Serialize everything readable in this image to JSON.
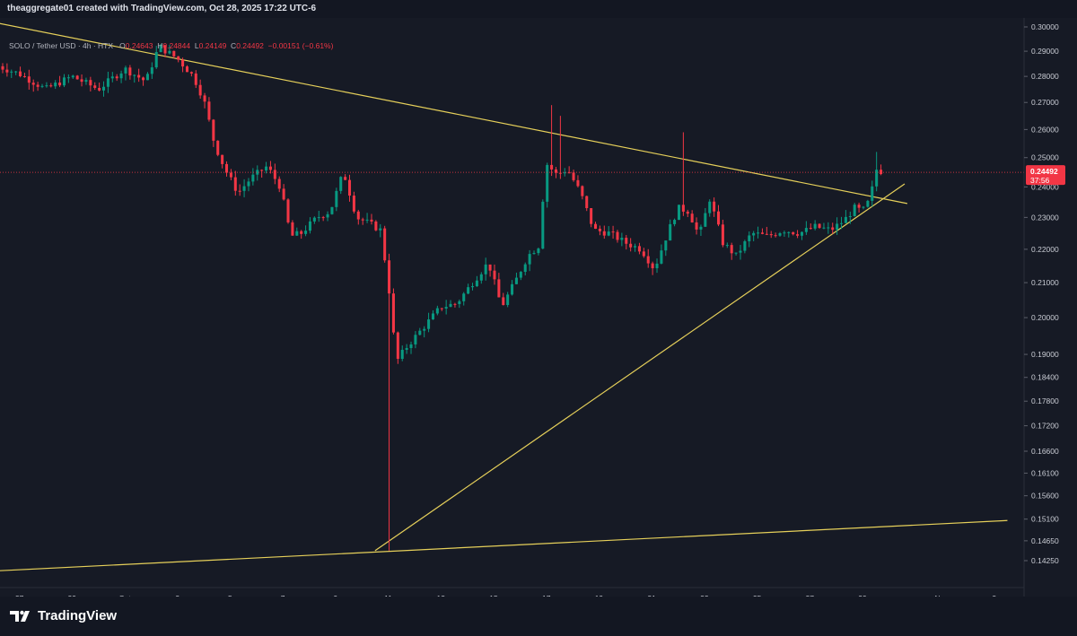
{
  "header": {
    "credit": "theaggregate01 created with TradingView.com, Oct 28, 2025 17:22 UTC-6"
  },
  "legend": {
    "symbol": "SOLO / Tether USD · 4h · HTX",
    "o_label": "O",
    "o_value": "0.24643",
    "h_label": "H",
    "h_value": "0.24844",
    "l_label": "L",
    "l_value": "0.24149",
    "c_label": "C",
    "c_value": "0.24492",
    "change": "−0.00151 (−0.61%)"
  },
  "price_badge": {
    "price": "0.24492",
    "countdown": "37:56"
  },
  "footer": {
    "brand": "TradingView"
  },
  "colors": {
    "up": "#089981",
    "down": "#f23645",
    "trendline": "#e6d05a",
    "background": "#161a25"
  },
  "chart_data": {
    "type": "candlestick",
    "title": "SOLO / Tether USD · 4h · HTX",
    "y_scale": "log",
    "ylim": [
      0.14,
      0.3
    ],
    "y_ticks": [
      "0.30000",
      "0.29000",
      "0.28000",
      "0.27000",
      "0.26000",
      "0.25000",
      "0.24000",
      "0.23000",
      "0.22000",
      "0.21000",
      "0.20000",
      "0.19000",
      "0.18400",
      "0.17800",
      "0.17200",
      "0.16600",
      "0.16100",
      "0.15600",
      "0.15100",
      "0.14650",
      "0.14250"
    ],
    "x_ticks": [
      "27",
      "29",
      "Oct",
      "3",
      "5",
      "7",
      "9",
      "11",
      "13",
      "15",
      "17",
      "19",
      "21",
      "23",
      "25",
      "27",
      "29",
      "Nov",
      "3"
    ],
    "x_tick_days": [
      -4,
      -2,
      0,
      2,
      4,
      6,
      8,
      10,
      12,
      14,
      16,
      18,
      20,
      22,
      24,
      26,
      28,
      31,
      33
    ],
    "current_price": 0.24492,
    "trendlines": [
      {
        "name": "upper-resistance",
        "points": [
          [
            -5,
            0.302
          ],
          [
            29.7,
            0.2345
          ]
        ]
      },
      {
        "name": "rising-support",
        "points": [
          [
            9.5,
            0.1445
          ],
          [
            29.6,
            0.241
          ]
        ]
      },
      {
        "name": "long-support",
        "points": [
          [
            -4.8,
            0.1405
          ],
          [
            33.5,
            0.1507
          ]
        ]
      }
    ],
    "price_path": [
      [
        -4.8,
        0.284
      ],
      [
        -4.0,
        0.281
      ],
      [
        -3.0,
        0.275
      ],
      [
        -2.0,
        0.28
      ],
      [
        -1.0,
        0.275
      ],
      [
        0.0,
        0.283
      ],
      [
        0.8,
        0.278
      ],
      [
        1.3,
        0.292
      ],
      [
        2.0,
        0.287
      ],
      [
        2.6,
        0.28
      ],
      [
        3.0,
        0.271
      ],
      [
        3.4,
        0.255
      ],
      [
        3.8,
        0.246
      ],
      [
        4.3,
        0.238
      ],
      [
        4.8,
        0.243
      ],
      [
        5.4,
        0.247
      ],
      [
        5.9,
        0.24
      ],
      [
        6.3,
        0.224
      ],
      [
        6.7,
        0.225
      ],
      [
        7.3,
        0.23
      ],
      [
        7.8,
        0.232
      ],
      [
        8.3,
        0.245
      ],
      [
        8.8,
        0.23
      ],
      [
        9.3,
        0.228
      ],
      [
        9.7,
        0.226
      ],
      [
        10.0,
        0.21
      ],
      [
        10.3,
        0.188
      ],
      [
        10.7,
        0.192
      ],
      [
        11.3,
        0.197
      ],
      [
        12.0,
        0.203
      ],
      [
        12.6,
        0.204
      ],
      [
        13.2,
        0.21
      ],
      [
        13.8,
        0.216
      ],
      [
        14.3,
        0.203
      ],
      [
        14.8,
        0.21
      ],
      [
        15.3,
        0.218
      ],
      [
        15.7,
        0.221
      ],
      [
        16.0,
        0.248
      ],
      [
        16.4,
        0.244
      ],
      [
        16.8,
        0.246
      ],
      [
        17.3,
        0.238
      ],
      [
        17.8,
        0.226
      ],
      [
        18.4,
        0.225
      ],
      [
        19.0,
        0.222
      ],
      [
        19.6,
        0.22
      ],
      [
        20.1,
        0.214
      ],
      [
        20.6,
        0.225
      ],
      [
        21.0,
        0.233
      ],
      [
        21.4,
        0.232
      ],
      [
        21.8,
        0.224
      ],
      [
        22.2,
        0.236
      ],
      [
        22.7,
        0.222
      ],
      [
        23.2,
        0.218
      ],
      [
        23.8,
        0.225
      ],
      [
        24.4,
        0.224
      ],
      [
        25.0,
        0.226
      ],
      [
        25.6,
        0.225
      ],
      [
        26.2,
        0.227
      ],
      [
        26.8,
        0.226
      ],
      [
        27.3,
        0.229
      ],
      [
        27.7,
        0.233
      ],
      [
        28.0,
        0.232
      ],
      [
        28.3,
        0.236
      ],
      [
        28.5,
        0.246
      ],
      [
        28.8,
        0.245
      ]
    ],
    "wicks": [
      {
        "day": 10.0,
        "low": 0.1445
      },
      {
        "day": 16.2,
        "high": 0.269
      },
      {
        "day": 16.6,
        "high": 0.265
      },
      {
        "day": 21.2,
        "high": 0.259
      },
      {
        "day": 28.5,
        "high": 0.252
      }
    ]
  }
}
